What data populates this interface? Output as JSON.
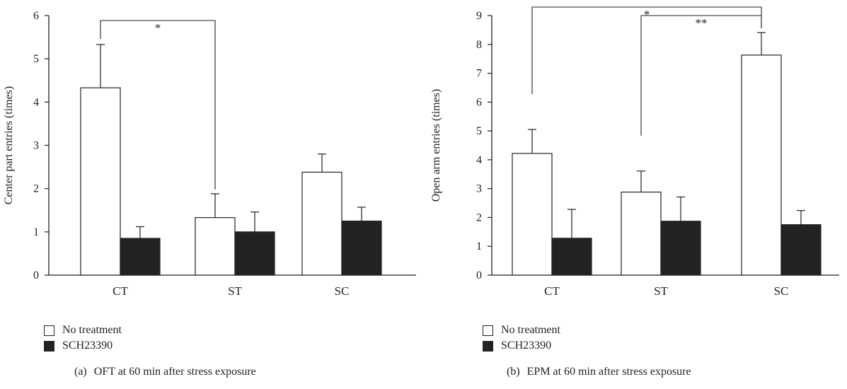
{
  "charts": [
    {
      "id": "a",
      "tag": "(a)",
      "caption": "OFT at 60 min after stress exposure",
      "ylabel": "Center part entries (times)",
      "ylim": [
        0,
        6
      ],
      "yticks": [
        "0",
        "1",
        "2",
        "3",
        "4",
        "5",
        "6"
      ],
      "categories": [
        "CT",
        "ST",
        "SC"
      ],
      "significance": [
        {
          "from": 0,
          "to": 1,
          "label": "*"
        }
      ]
    },
    {
      "id": "b",
      "tag": "(b)",
      "caption": "EPM at 60 min after stress exposure",
      "ylabel": "Open arm entries (times)",
      "ylim": [
        0,
        9
      ],
      "yticks": [
        "0",
        "1",
        "2",
        "3",
        "4",
        "5",
        "6",
        "7",
        "8",
        "9"
      ],
      "categories": [
        "CT",
        "ST",
        "SC"
      ],
      "significance": [
        {
          "from": 0,
          "to": 2,
          "label": "*"
        },
        {
          "from": 1,
          "to": 2,
          "label": "**"
        }
      ]
    }
  ],
  "legend": [
    {
      "label": "No treatment",
      "color": "#ffffff"
    },
    {
      "label": "SCH23390",
      "color": "#222222"
    }
  ],
  "chart_data": [
    {
      "type": "bar",
      "ylabel": "Center part entries (times)",
      "ylim": [
        0,
        6
      ],
      "categories": [
        "CT",
        "ST",
        "SC"
      ],
      "series": [
        {
          "name": "No treatment",
          "values": [
            4.33,
            1.33,
            2.38
          ],
          "errors": [
            1.0,
            0.55,
            0.42
          ],
          "color": "#ffffff"
        },
        {
          "name": "SCH23390",
          "values": [
            0.85,
            1.0,
            1.25
          ],
          "errors": [
            0.27,
            0.46,
            0.32
          ],
          "color": "#222222"
        }
      ],
      "legend": "bottom-left",
      "grid": false
    },
    {
      "type": "bar",
      "ylabel": "Open arm entries (times)",
      "ylim": [
        0,
        9
      ],
      "categories": [
        "CT",
        "ST",
        "SC"
      ],
      "series": [
        {
          "name": "No treatment",
          "values": [
            4.22,
            2.88,
            7.63
          ],
          "errors": [
            0.83,
            0.73,
            0.78
          ],
          "color": "#ffffff"
        },
        {
          "name": "SCH23390",
          "values": [
            1.28,
            1.87,
            1.75
          ],
          "errors": [
            1.0,
            0.84,
            0.49
          ],
          "color": "#222222"
        }
      ],
      "legend": "bottom-left",
      "grid": false
    }
  ]
}
